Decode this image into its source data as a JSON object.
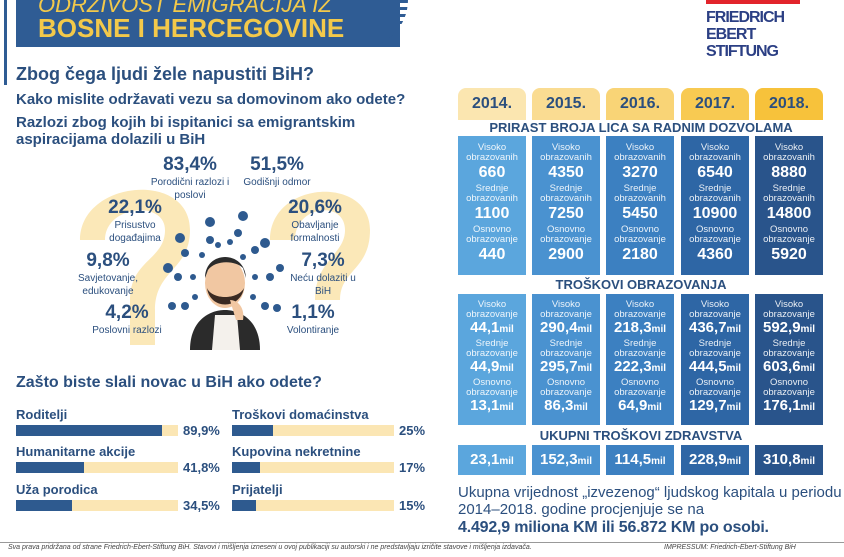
{
  "banner": {
    "line1": "ODRŽIVOST EMIGRACIJA IZ",
    "line2": "BOSNE I HERCEGOVINE"
  },
  "logo": {
    "text": [
      "FRIEDRICH",
      "EBERT",
      "STIFTUNG"
    ]
  },
  "questions": {
    "q1": "Zbog čega ljudi žele napustiti BiH?",
    "q2": "Kako mislite održavati vezu sa domovinom ako odete?",
    "q3": "Razlozi zbog kojih bi ispitanici sa emigrantskim aspiracijama dolazili u BiH"
  },
  "reasons": [
    {
      "value": "83,4%",
      "label": "Porodični razlozi i poslovi"
    },
    {
      "value": "51,5%",
      "label": "Godišnji odmor"
    },
    {
      "value": "22,1%",
      "label": "Prisustvo događajima"
    },
    {
      "value": "20,6%",
      "label": "Obavljanje formalnosti"
    },
    {
      "value": "9,8%",
      "label": "Savjetovanje, edukovanje"
    },
    {
      "value": "7,3%",
      "label": "Neću dolaziti u BiH"
    },
    {
      "value": "4,2%",
      "label": "Poslovni razlozi"
    },
    {
      "value": "1,1%",
      "label": "Volontiranje"
    }
  ],
  "money": {
    "title": "Zašto biste slali novac u BiH ako odete?",
    "items": [
      {
        "label": "Roditelji",
        "pct": "89,9%",
        "value": 89.9
      },
      {
        "label": "Humanitarne akcije",
        "pct": "41,8%",
        "value": 41.8
      },
      {
        "label": "Uža porodica",
        "pct": "34,5%",
        "value": 34.5
      },
      {
        "label": "Troškovi domaćinstva",
        "pct": "25%",
        "value": 25
      },
      {
        "label": "Kupovina nekretnine",
        "pct": "17%",
        "value": 17
      },
      {
        "label": "Prijatelji",
        "pct": "15%",
        "value": 15
      }
    ]
  },
  "years": [
    "2014.",
    "2015.",
    "2016.",
    "2017.",
    "2018."
  ],
  "year_colors": [
    "#fbe6b0",
    "#fadc92",
    "#f9d476",
    "#f8ca52",
    "#f7c23b"
  ],
  "box_colors": [
    "#5ba6dd",
    "#4a92d0",
    "#3c80c1",
    "#2e66a5",
    "#29548b"
  ],
  "permits": {
    "title": "PRIRAST BROJA LICA SA RADNIM DOZVOLAMA",
    "labels": [
      "Visoko obrazovanih",
      "Srednje obrazovanih",
      "Osnovno obrazovanje"
    ],
    "values": [
      [
        "660",
        "1100",
        "440"
      ],
      [
        "4350",
        "7250",
        "2900"
      ],
      [
        "3270",
        "5450",
        "2180"
      ],
      [
        "6540",
        "10900",
        "4360"
      ],
      [
        "8880",
        "14800",
        "5920"
      ]
    ]
  },
  "education": {
    "title": "TROŠKOVI OBRAZOVANJA",
    "unit": "mil",
    "labels": [
      "Visoko obrazovanje",
      "Srednje obrazovanje",
      "Osnovno obrazovanje"
    ],
    "values": [
      [
        "44,1",
        "44,9",
        "13,1"
      ],
      [
        "290,4",
        "295,7",
        "86,3"
      ],
      [
        "218,3",
        "222,3",
        "64,9"
      ],
      [
        "436,7",
        "444,5",
        "129,7"
      ],
      [
        "592,9",
        "603,6",
        "176,1"
      ]
    ]
  },
  "health": {
    "title": "UKUPNI TROŠKOVI ZDRAVSTVA",
    "unit": "mil",
    "values": [
      "23,1",
      "152,3",
      "114,5",
      "228,9",
      "310,8"
    ]
  },
  "summary": {
    "text": "Ukupna vrijednost „izvezenog“ ljudskog kapitala u periodu 2014–2018. godine procjenjuje se na",
    "highlight": "4.492,9 miliona KM ili 56.872 KM po osobi."
  },
  "footer": {
    "left": "Sva prava pridržana od strane Friedrich-Ebert-Stiftung BiH. Stavovi i mišljenja izneseni u ovoj publikaciji su autorski i ne predstavljaju izričite stavove i mišljenja izdavača.",
    "right": "IMPRESSUM: Friedrich-Ebert-Stiftung BiH"
  }
}
